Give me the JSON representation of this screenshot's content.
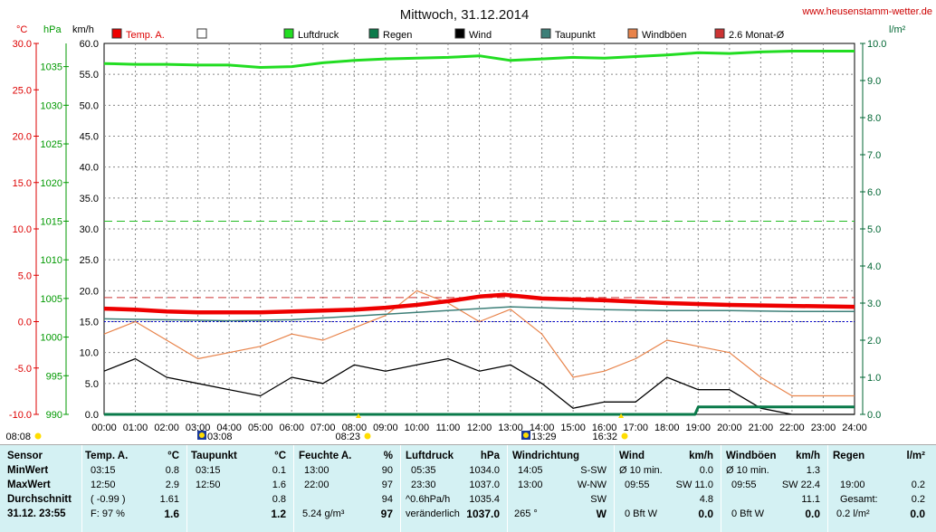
{
  "header": {
    "title": "Mittwoch, 31.12.2014",
    "website": "www.heusenstamm-wetter.de"
  },
  "axes": {
    "temp_unit": "°C",
    "hpa_unit": "hPa",
    "kmh_unit": "km/h",
    "rain_unit": "l/m²",
    "temp_ticks": [
      "30.0",
      "25.0",
      "20.0",
      "15.0",
      "10.0",
      "5.0",
      "0.0",
      "-5.0",
      "-10.0"
    ],
    "hpa_ticks": [
      "1035",
      "1030",
      "1025",
      "1020",
      "1015",
      "1010",
      "1005",
      "1000",
      "995",
      "990"
    ],
    "kmh_ticks": [
      "60.0",
      "55.0",
      "50.0",
      "45.0",
      "40.0",
      "35.0",
      "30.0",
      "25.0",
      "20.0",
      "15.0",
      "10.0",
      "5.0",
      "0.0"
    ],
    "rain_ticks": [
      "10.0",
      "9.0",
      "8.0",
      "7.0",
      "6.0",
      "5.0",
      "4.0",
      "3.0",
      "2.0",
      "1.0",
      "0.0"
    ],
    "x_ticks": [
      "00:00",
      "01:00",
      "02:00",
      "03:00",
      "04:00",
      "05:00",
      "06:00",
      "07:00",
      "08:00",
      "09:00",
      "10:00",
      "11:00",
      "12:00",
      "13:00",
      "14:00",
      "15:00",
      "16:00",
      "17:00",
      "18:00",
      "19:00",
      "20:00",
      "21:00",
      "22:00",
      "23:00",
      "24:00"
    ]
  },
  "legend": [
    {
      "label": "Temp. A.",
      "color": "#ee0000"
    },
    {
      "label": "",
      "color": "#ffffff"
    },
    {
      "label": "Luftdruck",
      "color": "#22dd22"
    },
    {
      "label": "Regen",
      "color": "#0a7a4a"
    },
    {
      "label": "Wind",
      "color": "#000000"
    },
    {
      "label": "Taupunkt",
      "color": "#3d7f78"
    },
    {
      "label": "Windböen",
      "color": "#e8834a"
    },
    {
      "label": "2.6 Monat-Ø",
      "color": "#cc3333"
    }
  ],
  "sun_markers": {
    "sunrise": "08:08",
    "moonset": "03:08",
    "sun_high": "08:23",
    "moonrise": "13:29",
    "sunset": "16:32"
  },
  "chart_data": {
    "type": "line",
    "title": "Mittwoch, 31.12.2014",
    "x_range": [
      "00:00",
      "24:00"
    ],
    "series": [
      {
        "name": "Temp. A.",
        "axis": "°C",
        "ylim": [
          -10,
          30
        ],
        "x": [
          0,
          1,
          2,
          3,
          4,
          5,
          6,
          7,
          8,
          9,
          10,
          11,
          12,
          12.8,
          14,
          16,
          18,
          20,
          22,
          24
        ],
        "values": [
          1.4,
          1.3,
          1.1,
          1.0,
          1.0,
          1.0,
          1.1,
          1.2,
          1.3,
          1.5,
          1.8,
          2.2,
          2.7,
          2.9,
          2.5,
          2.3,
          2.0,
          1.8,
          1.7,
          1.6
        ]
      },
      {
        "name": "Taupunkt",
        "axis": "°C",
        "ylim": [
          -10,
          30
        ],
        "x": [
          0,
          2,
          4,
          6,
          8,
          10,
          12,
          13,
          14,
          16,
          18,
          20,
          22,
          24
        ],
        "values": [
          0.3,
          0.2,
          0.1,
          0.2,
          0.6,
          1.0,
          1.4,
          1.6,
          1.5,
          1.3,
          1.2,
          1.2,
          1.1,
          1.1
        ]
      },
      {
        "name": "Luftdruck",
        "axis": "hPa",
        "ylim": [
          990,
          1038
        ],
        "x": [
          0,
          1,
          2,
          3,
          4,
          5,
          6,
          7,
          8,
          9,
          10,
          11,
          12,
          13,
          14,
          15,
          16,
          17,
          18,
          19,
          20,
          21,
          22,
          23,
          24
        ],
        "values": [
          1035.4,
          1035.3,
          1035.3,
          1035.2,
          1035.2,
          1034.9,
          1035.0,
          1035.5,
          1035.8,
          1036.0,
          1036.1,
          1036.2,
          1036.4,
          1035.8,
          1036.0,
          1036.2,
          1036.1,
          1036.3,
          1036.5,
          1036.8,
          1036.7,
          1036.9,
          1037.0,
          1037.0,
          1037.0
        ]
      },
      {
        "name": "Wind",
        "axis": "km/h",
        "ylim": [
          0,
          60
        ],
        "x": [
          0,
          1,
          2,
          3,
          4,
          5,
          6,
          7,
          8,
          9,
          10,
          11,
          12,
          13,
          14,
          15,
          16,
          17,
          18,
          19,
          20,
          21,
          22,
          23,
          24
        ],
        "values": [
          7,
          9,
          6,
          5,
          4,
          3,
          6,
          5,
          8,
          7,
          8,
          9,
          7,
          8,
          5,
          1,
          2,
          2,
          6,
          4,
          4,
          1,
          0,
          0,
          0
        ]
      },
      {
        "name": "Windböen",
        "axis": "km/h",
        "ylim": [
          0,
          60
        ],
        "x": [
          0,
          1,
          2,
          3,
          4,
          5,
          6,
          7,
          8,
          9,
          10,
          11,
          12,
          13,
          14,
          15,
          16,
          17,
          18,
          19,
          20,
          21,
          22,
          23,
          24
        ],
        "values": [
          13,
          15,
          12,
          9,
          10,
          11,
          13,
          12,
          14,
          16,
          20,
          18,
          15,
          17,
          13,
          6,
          7,
          9,
          12,
          11,
          10,
          6,
          3,
          3,
          3
        ]
      },
      {
        "name": "Regen",
        "axis": "l/m²",
        "ylim": [
          0,
          10
        ],
        "x": [
          0,
          18.9,
          19.0,
          24
        ],
        "values": [
          0,
          0,
          0.2,
          0.2
        ]
      }
    ],
    "reference_lines": [
      {
        "label": "2.6 Monat-Ø",
        "axis": "°C",
        "value": 2.6
      }
    ],
    "grid": true
  },
  "stats": {
    "sensor": {
      "head": "Sensor",
      "min": "MinWert",
      "max": "MaxWert",
      "avg": "Durchschnitt",
      "date": "31.12. 23:55"
    },
    "temp": {
      "head": "Temp. A.",
      "unit": "°C",
      "min_time": "03:15",
      "min": "0.8",
      "max_time": "12:50",
      "max": "2.9",
      "avg_note": "( -0.99 )",
      "avg": "1.61",
      "humid_note": "F: 97 %",
      "current": "1.6"
    },
    "dew": {
      "head": "Taupunkt",
      "unit": "°C",
      "min_time": "03:15",
      "min": "0.1",
      "max_time": "12:50",
      "max": "1.6",
      "avg": "0.8",
      "current": "1.2"
    },
    "humidity": {
      "head": "Feuchte A.",
      "unit": "%",
      "min_time": "13:00",
      "min": "90",
      "max_time": "22:00",
      "max": "97",
      "avg": "94",
      "abs": "5.24 g/m³",
      "current": "97"
    },
    "pressure": {
      "head": "Luftdruck",
      "unit": "hPa",
      "min_time": "05:35",
      "min": "1034.0",
      "max_time": "23:30",
      "max": "1037.0",
      "trend": "^0.6hPa/h",
      "avg": "1035.4",
      "tendency": "veränderlich",
      "current": "1037.0"
    },
    "direction": {
      "head": "Windrichtung",
      "min_time": "14:05",
      "min": "S-SW",
      "max_time": "13:00",
      "max": "W-NW",
      "avg": "SW",
      "deg": "265 °",
      "current": "W"
    },
    "wind": {
      "head": "Wind",
      "unit": "km/h",
      "min_label": "Ø 10 min.",
      "min": "0.0",
      "max_time": "09:55",
      "max": "SW 11.0",
      "avg": "4.8",
      "bft": "0 Bft W",
      "current": "0.0"
    },
    "gust": {
      "head": "Windböen",
      "unit": "km/h",
      "min_label": "Ø 10 min.",
      "min": "1.3",
      "max_time": "09:55",
      "max": "SW 22.4",
      "avg": "11.1",
      "bft": "0 Bft W",
      "current": "0.0"
    },
    "rain": {
      "head": "Regen",
      "unit": "l/m²",
      "max_time": "19:00",
      "max": "0.2",
      "total_label": "Gesamt:",
      "total": "0.2",
      "rate": "0.2 l/m²",
      "current": "0.0"
    }
  }
}
